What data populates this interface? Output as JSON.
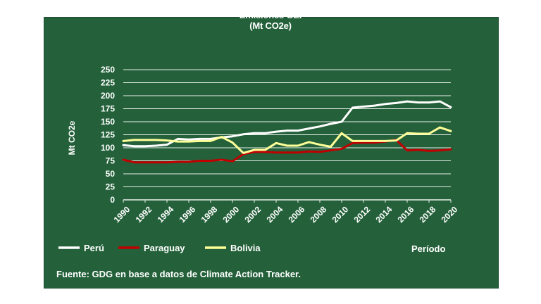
{
  "chart_data": {
    "type": "line",
    "title": "Emisiones GEI",
    "subtitle": "(Mt CO2e)",
    "ylabel": "Mt CO2e",
    "xlabel": "Período",
    "ylim": [
      0,
      250
    ],
    "yticks": [
      "0",
      "25",
      "50",
      "75",
      "100",
      "125",
      "150",
      "175",
      "200",
      "225",
      "250"
    ],
    "xticks": [
      "1990",
      "1992",
      "1994",
      "1996",
      "1998",
      "2000",
      "2002",
      "2004",
      "2006",
      "2008",
      "2010",
      "2012",
      "2014",
      "2016",
      "2018",
      "2020"
    ],
    "x": [
      1990,
      1991,
      1992,
      1993,
      1994,
      1995,
      1996,
      1997,
      1998,
      1999,
      2000,
      2001,
      2002,
      2003,
      2004,
      2005,
      2006,
      2007,
      2008,
      2009,
      2010,
      2011,
      2012,
      2013,
      2014,
      2015,
      2016,
      2017,
      2018,
      2019,
      2020
    ],
    "grid": true,
    "legend_position": "bottom-left",
    "series": [
      {
        "name": "Perú",
        "color": "#ffffff",
        "values": [
          105,
          103,
          103,
          104,
          106,
          117,
          116,
          117,
          117,
          120,
          122,
          126,
          128,
          128,
          131,
          133,
          133,
          137,
          141,
          146,
          150,
          177,
          179,
          181,
          184,
          186,
          189,
          187,
          187,
          189,
          178
        ]
      },
      {
        "name": "Paraguay",
        "color": "#c00000",
        "values": [
          77,
          72,
          72,
          72,
          72,
          73,
          73,
          75,
          75,
          77,
          74,
          88,
          92,
          92,
          91,
          91,
          91,
          93,
          92,
          95,
          98,
          109,
          110,
          110,
          112,
          115,
          95,
          96,
          94,
          95,
          97
        ]
      },
      {
        "name": "Bolivia",
        "color": "#ffff99",
        "values": [
          113,
          115,
          115,
          115,
          114,
          112,
          112,
          113,
          113,
          121,
          110,
          90,
          96,
          96,
          109,
          104,
          104,
          111,
          106,
          102,
          128,
          113,
          113,
          113,
          113,
          114,
          128,
          127,
          127,
          139,
          132
        ]
      }
    ]
  },
  "source_text": "Fuente: GDG en base a datos de Climate Action Tracker."
}
